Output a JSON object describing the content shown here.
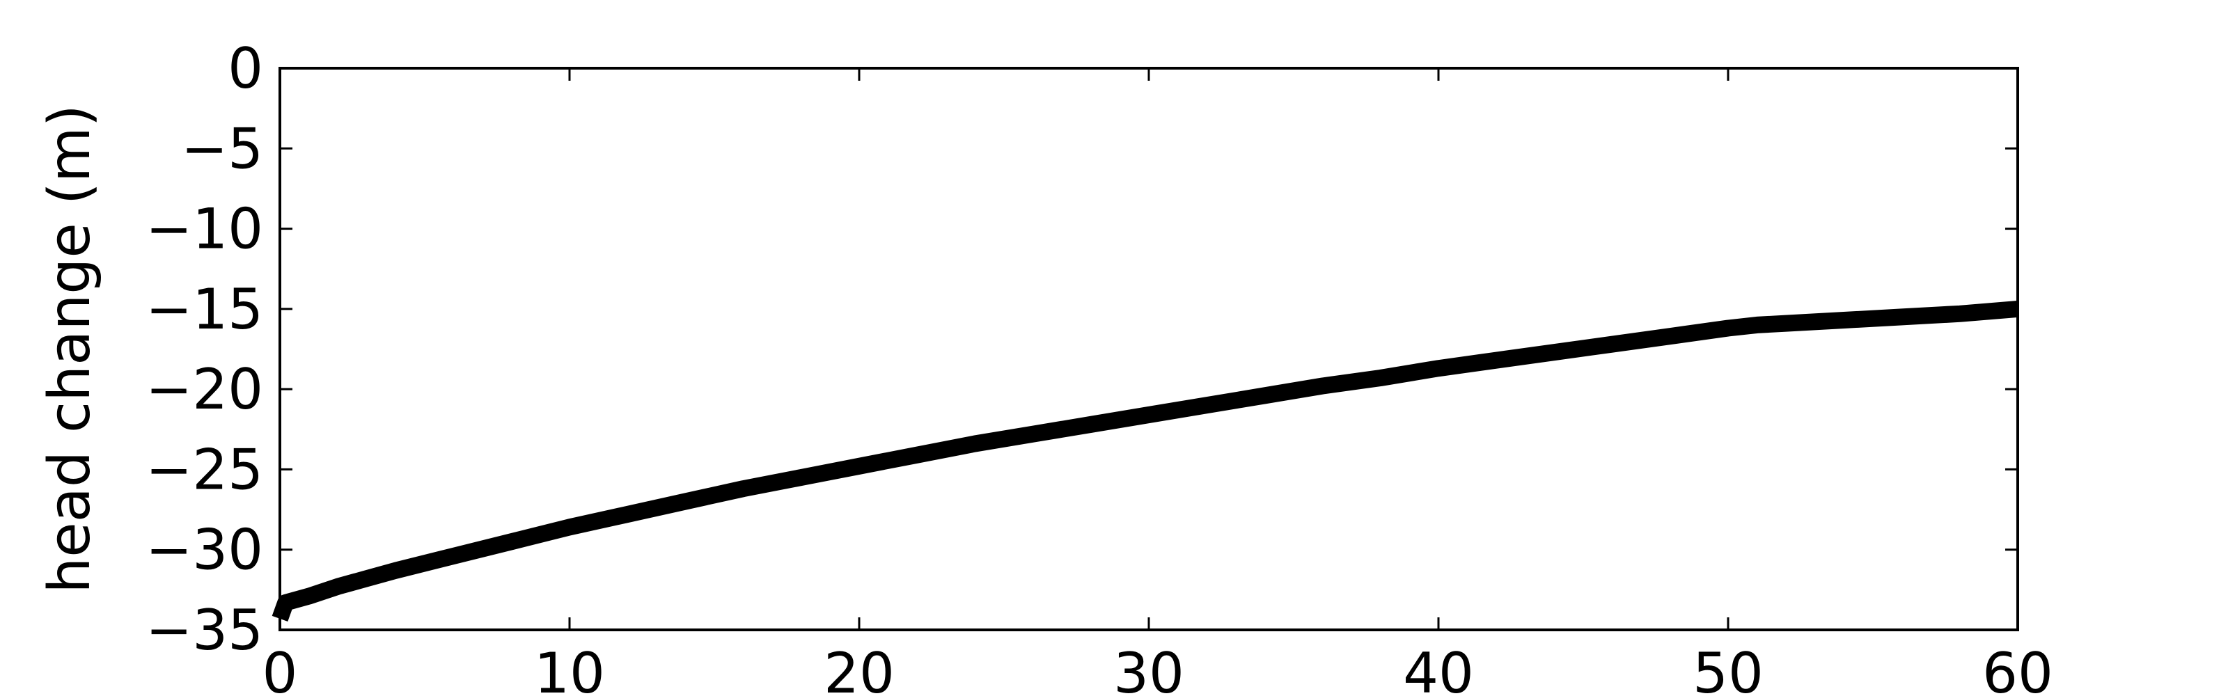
{
  "chart_data": {
    "type": "line",
    "title": "",
    "xlabel": "",
    "ylabel": "head change (m)",
    "xlim": [
      0,
      60
    ],
    "ylim": [
      -35,
      0
    ],
    "xticks": [
      0,
      10,
      20,
      30,
      40,
      50,
      60
    ],
    "yticks": [
      0,
      -5,
      -10,
      -15,
      -20,
      -25,
      -30,
      -35
    ],
    "xtick_labels": [
      "0",
      "10",
      "20",
      "30",
      "40",
      "50",
      "60"
    ],
    "ytick_labels": [
      "0",
      "−5",
      "−10",
      "−15",
      "−20",
      "−25",
      "−30",
      "−35"
    ],
    "grid": false,
    "legend": "none",
    "series": [
      {
        "color": "#000000",
        "x": [
          0,
          0.2,
          1,
          2,
          3,
          4,
          6,
          8,
          10,
          12,
          14,
          16,
          18,
          20,
          22,
          24,
          26,
          28,
          30,
          32,
          34,
          36,
          38,
          40,
          42,
          44,
          46,
          48,
          50,
          51,
          52,
          54,
          56,
          58,
          60
        ],
        "y": [
          -34.3,
          -33.3,
          -32.9,
          -32.3,
          -31.8,
          -31.3,
          -30.4,
          -29.5,
          -28.6,
          -27.8,
          -27.0,
          -26.2,
          -25.5,
          -24.8,
          -24.1,
          -23.4,
          -22.8,
          -22.2,
          -21.6,
          -21.0,
          -20.4,
          -19.8,
          -19.3,
          -18.7,
          -18.2,
          -17.7,
          -17.2,
          -16.7,
          -16.2,
          -16.0,
          -15.9,
          -15.7,
          -15.5,
          -15.3,
          -15.0
        ]
      }
    ]
  }
}
